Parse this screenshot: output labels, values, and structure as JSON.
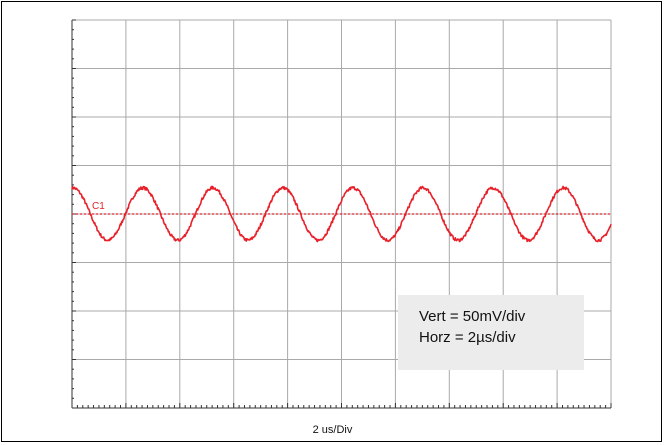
{
  "chart_data": {
    "type": "line",
    "title": "",
    "xlabel": "2 us/Div",
    "ylabel": "",
    "x_divisions": 10,
    "y_divisions": 8,
    "x_unit_per_div_us": 2,
    "y_unit_per_div_mV": 50,
    "xlim": [
      0,
      20
    ],
    "ylim": [
      -200,
      200
    ],
    "grid": true,
    "channel_marker": "C1",
    "reference_level_mV": 0,
    "series": [
      {
        "name": "",
        "color": "#e8202a",
        "waveform": "sine",
        "offset_mV": 0,
        "amplitude_mV": 27,
        "period_us": 2.6,
        "phase_at_t0": 1.5,
        "t_start": 0,
        "t_end": 20
      }
    ],
    "annotations": [
      "Vert = 50mV/div",
      "Horz = 2µs/div"
    ]
  },
  "colors": {
    "trace": "#e8202a",
    "grid": "#a9a9a9",
    "axis": "#333333",
    "annotation_bg": "#ececec"
  }
}
